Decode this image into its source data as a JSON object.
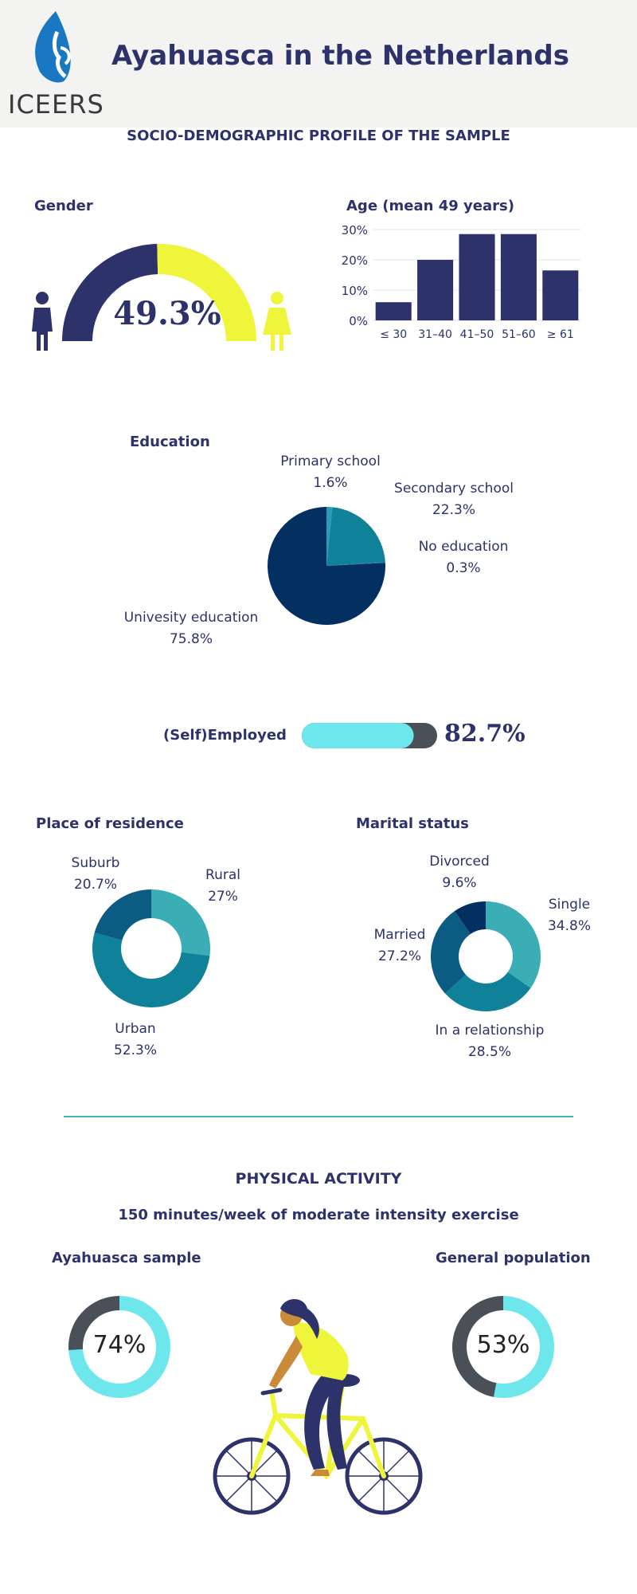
{
  "header": {
    "title": "Ayahuasca in the Netherlands",
    "logo_text": "ICEERS",
    "subtitle": "SOCIO-DEMOGRAPHIC PROFILE OF THE SAMPLE"
  },
  "colors": {
    "navy": "#2d326b",
    "yellow": "#eef53a",
    "teal_light": "#3aadb5",
    "teal_mid": "#0f8199",
    "teal_dark": "#0b5b82",
    "navy_dark": "#033060",
    "cyan": "#6ee7ec",
    "slate": "#4a5058"
  },
  "sections": {
    "gender": "Gender",
    "age": "Age (mean 49 years)",
    "education": "Education",
    "employed": "(Self)Employed",
    "residence": "Place of residence",
    "marital": "Marital status",
    "physical": "PHYSICAL ACTIVITY",
    "physical_sub": "150 minutes/week of moderate intensity exercise",
    "sample": "Ayahuasca sample",
    "general": "General population"
  },
  "chart_data": [
    {
      "type": "gauge",
      "title": "Gender",
      "value_label": "49.3%",
      "value": 49.3,
      "icons": [
        "male-icon",
        "female-icon"
      ]
    },
    {
      "type": "bar",
      "title": "Age (mean 49 years)",
      "categories": [
        "≤ 30",
        "31–40",
        "41–50",
        "51–60",
        "≥ 61"
      ],
      "values": [
        6,
        20,
        28.5,
        28.5,
        16.5
      ],
      "yticks": [
        "0%",
        "10%",
        "20%",
        "30%"
      ],
      "ylim": [
        0,
        30
      ]
    },
    {
      "type": "pie",
      "title": "Education",
      "slices": [
        {
          "name": "Primary school",
          "label": "1.6%",
          "value": 1.6
        },
        {
          "name": "Secondary school",
          "label": "22.3%",
          "value": 22.3
        },
        {
          "name": "No education",
          "label": "0.3%",
          "value": 0.3
        },
        {
          "name": "Univesity education",
          "label": "75.8%",
          "value": 75.8
        }
      ]
    },
    {
      "type": "progress",
      "title": "(Self)Employed",
      "value_label": "82.7%",
      "value": 82.7
    },
    {
      "type": "donut",
      "title": "Place of residence",
      "slices": [
        {
          "name": "Rural",
          "label": "27%",
          "value": 27
        },
        {
          "name": "Urban",
          "label": "52.3%",
          "value": 52.3
        },
        {
          "name": "Suburb",
          "label": "20.7%",
          "value": 20.7
        }
      ]
    },
    {
      "type": "donut",
      "title": "Marital status",
      "slices": [
        {
          "name": "Single",
          "label": "34.8%",
          "value": 34.8
        },
        {
          "name": "In a relationship",
          "label": "28.5%",
          "value": 28.5
        },
        {
          "name": "Married",
          "label": "27.2%",
          "value": 27.2
        },
        {
          "name": "Divorced",
          "label": "9.6%",
          "value": 9.6
        }
      ]
    },
    {
      "type": "donut",
      "title": "Ayahuasca sample",
      "value_label": "74%",
      "value": 74
    },
    {
      "type": "donut",
      "title": "General population",
      "value_label": "53%",
      "value": 53
    }
  ]
}
